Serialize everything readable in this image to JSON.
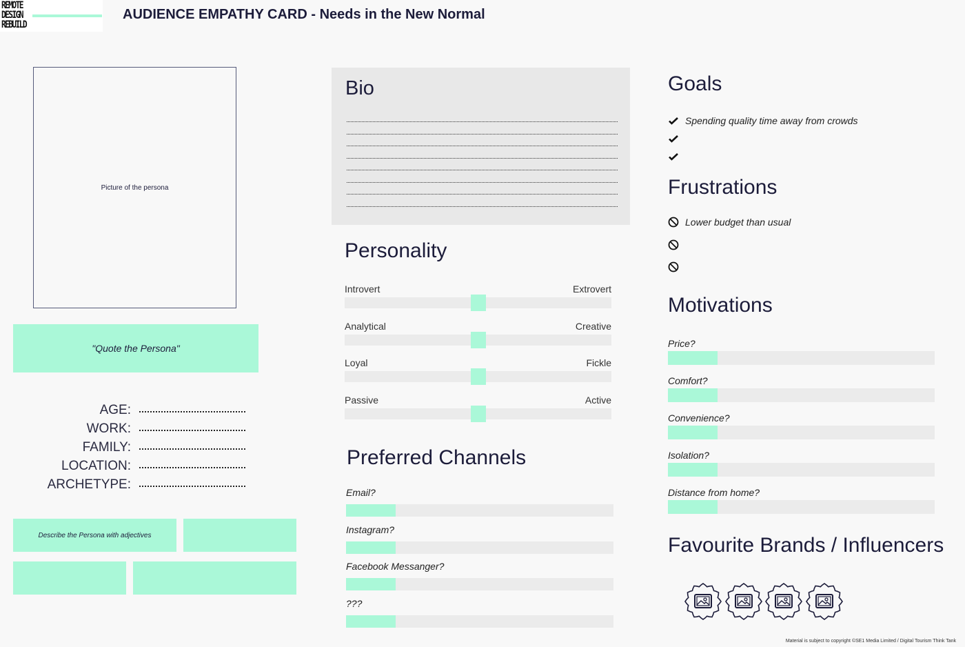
{
  "logo": {
    "text": "REMOTE\nDESIGN\nREBUILD"
  },
  "header": {
    "title": "AUDIENCE EMPATHY CARD - Needs in the New Normal"
  },
  "persona": {
    "picture_label": "Picture of the persona",
    "quote": "\"Quote the Persona\"",
    "fields": [
      {
        "label": "AGE:"
      },
      {
        "label": "WORK:"
      },
      {
        "label": "FAMILY:"
      },
      {
        "label": "LOCATION:"
      },
      {
        "label": "ARCHETYPE:"
      }
    ],
    "adjectives": [
      "Describe the Persona with adjectives",
      "",
      "",
      ""
    ]
  },
  "bio": {
    "title": "Bio",
    "lines": 8
  },
  "personality": {
    "title": "Personality",
    "traits": [
      {
        "left": "Introvert",
        "right": "Extrovert",
        "value": 0.5
      },
      {
        "left": "Analytical",
        "right": "Creative",
        "value": 0.5
      },
      {
        "left": "Loyal",
        "right": "Fickle",
        "value": 0.5
      },
      {
        "left": "Passive",
        "right": "Active",
        "value": 0.5
      }
    ]
  },
  "channels": {
    "title": "Preferred Channels",
    "items": [
      {
        "label": "Email?",
        "value": 0.185
      },
      {
        "label": "Instagram?",
        "value": 0.185
      },
      {
        "label": "Facebook Messanger?",
        "value": 0.185
      },
      {
        "label": "???",
        "value": 0.185
      }
    ]
  },
  "goals": {
    "title": "Goals",
    "icon": "check-icon",
    "items": [
      "Spending quality time away from crowds",
      "",
      ""
    ]
  },
  "frustrations": {
    "title": "Frustrations",
    "icon": "prohibited-icon",
    "items": [
      "Lower budget than usual",
      "",
      ""
    ]
  },
  "motivations": {
    "title": "Motivations",
    "items": [
      {
        "label": "Price?",
        "value": 0.185
      },
      {
        "label": "Comfort?",
        "value": 0.185
      },
      {
        "label": "Convenience?",
        "value": 0.185
      },
      {
        "label": "Isolation?",
        "value": 0.185
      },
      {
        "label": "Distance from home?",
        "value": 0.185
      }
    ]
  },
  "brands": {
    "title": "Favourite Brands / Influencers",
    "count": 4
  },
  "footer": {
    "text": "Material is subject to copyright ©SE1 Media Limited / Digital Tourism Think Tank"
  },
  "colors": {
    "accent": "#aaf8d8",
    "text": "#1c1c3a",
    "track": "#ebebeb"
  }
}
